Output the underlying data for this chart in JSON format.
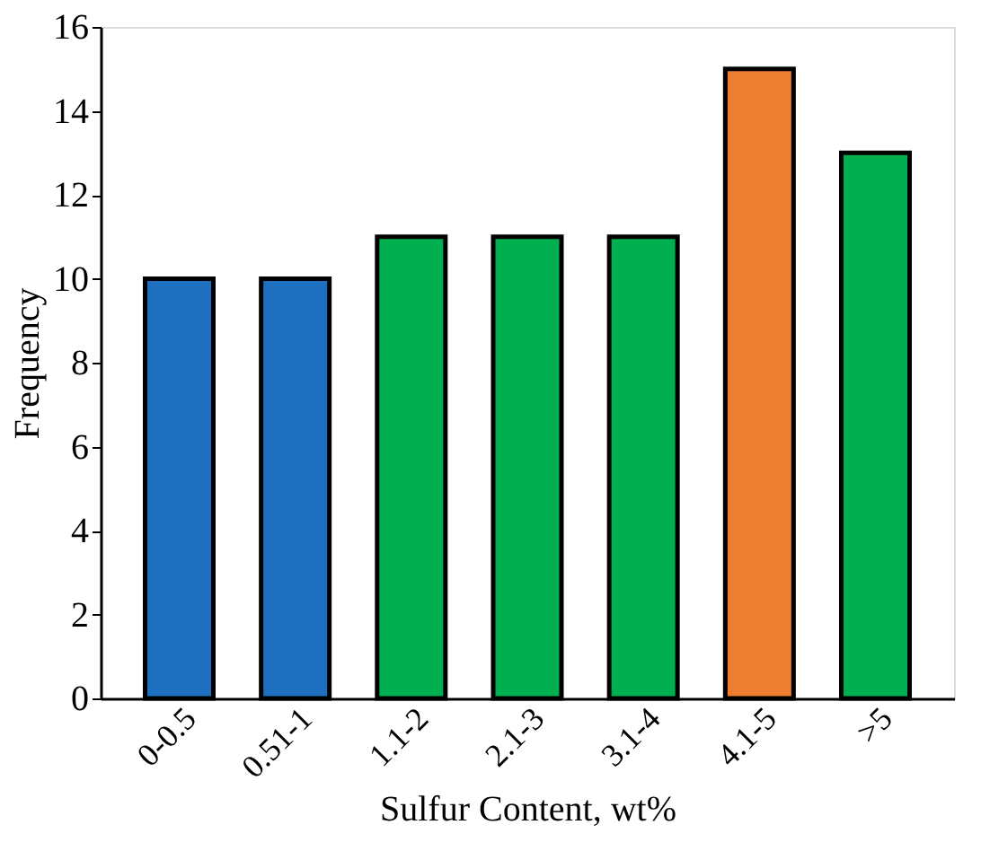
{
  "chart_data": {
    "type": "bar",
    "xlabel": "Sulfur Content, wt%",
    "ylabel": "Frequency",
    "categories": [
      "0-0.5",
      "0.51-1",
      "1.1-2",
      "2.1-3",
      "3.1-4",
      "4.1-5",
      ">5"
    ],
    "values": [
      10,
      10,
      11,
      11,
      11,
      15,
      13
    ],
    "colors": [
      "#1f6fc0",
      "#1f6fc0",
      "#00b050",
      "#00b050",
      "#00b050",
      "#ed7d31",
      "#00b050"
    ],
    "ylim": [
      0,
      16
    ],
    "yticks": [
      0,
      2,
      4,
      6,
      8,
      10,
      12,
      14,
      16
    ],
    "grid": false
  }
}
